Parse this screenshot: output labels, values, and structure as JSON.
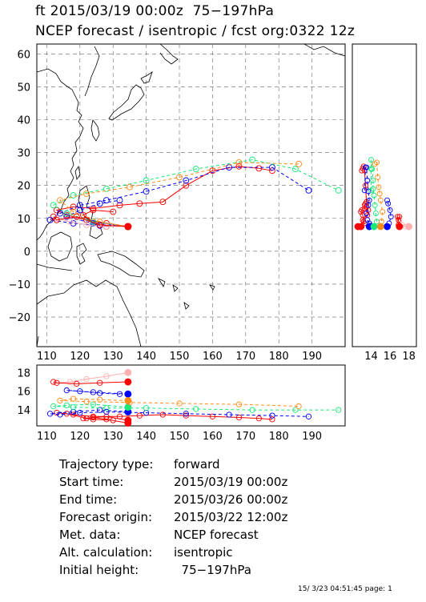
{
  "title_line1": "ft 2015/03/19 00:00z  75−197hPa",
  "title_line2": "NCEP forecast / isentropic / fcst org:0322 12z",
  "footer": "15/ 3/23 04:51:45 page: 1",
  "info": [
    {
      "label": "Trajectory type:",
      "value": "forward"
    },
    {
      "label": "Start time:",
      "value": "2015/03/19 00:00z"
    },
    {
      "label": "End time:",
      "value": "2015/03/26 00:00z"
    },
    {
      "label": "Forecast origin:",
      "value": "2015/03/22 12:00z"
    },
    {
      "label": "Met. data:",
      "value": "NCEP forecast"
    },
    {
      "label": "Alt. calculation:",
      "value": "isentropic"
    },
    {
      "label": "Initial height:",
      "value": "  75−197hPa"
    }
  ],
  "colors": {
    "red": "#ff0000",
    "blue": "#0000ff",
    "green": "#19e87a",
    "orange": "#ff8c1a",
    "pink": "#ffb0b0",
    "darkred": "#cc0000",
    "grid": "#666666"
  },
  "chart_data": {
    "type": "scatter",
    "map": {
      "lon_range": [
        107,
        200
      ],
      "lat_range": [
        -29,
        63
      ],
      "lon_ticks": [
        "110",
        "120",
        "130",
        "140",
        "150",
        "160",
        "170",
        "180",
        "190"
      ],
      "lat_ticks": [
        "60",
        "50",
        "40",
        "30",
        "20",
        "10",
        "0",
        "−10",
        "−20"
      ],
      "grid": true,
      "coastlines": true
    },
    "side_panel": {
      "x_ticks": [
        "14",
        "16",
        "18"
      ],
      "x_range": [
        12,
        18.8
      ]
    },
    "bottom_panel": {
      "y_ticks": [
        "18",
        "16",
        "14"
      ],
      "y_range": [
        12.3,
        18.8
      ]
    },
    "series": [
      {
        "color": "red",
        "style": "solid",
        "trajectory": [
          [
            134.5,
            7.5
          ],
          [
            128,
            8.5
          ],
          [
            122,
            9.5
          ],
          [
            116,
            11
          ],
          [
            113,
            12.5
          ],
          [
            118,
            13.5
          ],
          [
            124,
            13
          ],
          [
            132,
            14
          ],
          [
            138,
            14.5
          ],
          [
            145,
            15
          ],
          [
            152,
            20
          ],
          [
            160,
            24.5
          ],
          [
            168,
            25.8
          ],
          [
            174,
            25.2
          ],
          [
            178,
            24.5
          ]
        ],
        "height": [
          12.9,
          13.3,
          13.1,
          13.6,
          13.7,
          13.5,
          13.3,
          13.3,
          13.4,
          13.5,
          13.4,
          13.3,
          13.2,
          13.1,
          13.0
        ]
      },
      {
        "color": "red",
        "style": "solid",
        "trajectory": [
          [
            134.5,
            7.5
          ],
          [
            128,
            7.5
          ],
          [
            124,
            9
          ],
          [
            121,
            11
          ],
          [
            124,
            12.5
          ],
          [
            130,
            12
          ]
        ],
        "height": [
          12.6,
          13.0,
          13.2,
          13.1,
          13.0,
          12.9
        ]
      },
      {
        "color": "blue",
        "style": "dashed",
        "trajectory": [
          [
            134.5,
            7.5
          ],
          [
            126,
            7.8
          ],
          [
            118,
            8.5
          ],
          [
            111,
            9.5
          ],
          [
            114,
            11.5
          ],
          [
            120,
            14
          ],
          [
            128,
            15.5
          ],
          [
            140,
            18.2
          ],
          [
            152,
            21.5
          ],
          [
            165,
            25.5
          ],
          [
            178,
            25.5
          ],
          [
            189,
            18.5
          ]
        ],
        "height": [
          13.8,
          14.0,
          13.8,
          13.6,
          13.5,
          13.7,
          13.8,
          13.7,
          13.6,
          13.5,
          13.4,
          13.3
        ]
      },
      {
        "color": "blue",
        "style": "dashed",
        "trajectory": [
          [
            134.5,
            7.5
          ],
          [
            124,
            8.5
          ],
          [
            116,
            10.5
          ],
          [
            120,
            12.5
          ],
          [
            126,
            14.5
          ],
          [
            132,
            15.5
          ]
        ],
        "height": [
          15.7,
          15.9,
          16.1,
          16.0,
          15.8,
          15.7
        ]
      },
      {
        "color": "green",
        "style": "dashed",
        "trajectory": [
          [
            134.5,
            7.5
          ],
          [
            124,
            9
          ],
          [
            116,
            11.5
          ],
          [
            112,
            14
          ],
          [
            118,
            17
          ],
          [
            128,
            19
          ],
          [
            140,
            21.5
          ],
          [
            155,
            25
          ],
          [
            172,
            27.8
          ],
          [
            185,
            25
          ],
          [
            198,
            18.5
          ]
        ],
        "height": [
          14.3,
          14.6,
          14.5,
          14.4,
          14.3,
          14.2,
          14.2,
          14.1,
          14.0,
          14.0,
          14.0
        ]
      },
      {
        "color": "orange",
        "style": "dashed",
        "trajectory": [
          [
            134.5,
            7.5
          ],
          [
            126,
            9
          ],
          [
            118,
            12
          ],
          [
            114,
            15.5
          ],
          [
            122,
            17.5
          ],
          [
            135,
            19.5
          ],
          [
            150,
            22.5
          ],
          [
            168,
            27
          ],
          [
            186,
            26.5
          ]
        ],
        "height": [
          15.0,
          15.1,
          15.2,
          15.0,
          14.9,
          14.8,
          14.7,
          14.6,
          14.4
        ]
      },
      {
        "color": "pink",
        "style": "solid",
        "trajectory": [
          [
            134.5,
            7.5
          ],
          [
            128,
            7.5
          ],
          [
            122,
            8
          ],
          [
            117,
            9
          ],
          [
            113,
            10
          ]
        ],
        "height": [
          18.0,
          17.6,
          17.3,
          17.0,
          16.9
        ]
      },
      {
        "color": "red",
        "style": "solid",
        "trajectory": [
          [
            134.5,
            7.5
          ],
          [
            126,
            8
          ],
          [
            119,
            10.5
          ],
          [
            113,
            9.5
          ],
          [
            112,
            10.5
          ]
        ],
        "height": [
          17.0,
          16.9,
          16.8,
          16.9,
          17.0
        ]
      }
    ]
  }
}
